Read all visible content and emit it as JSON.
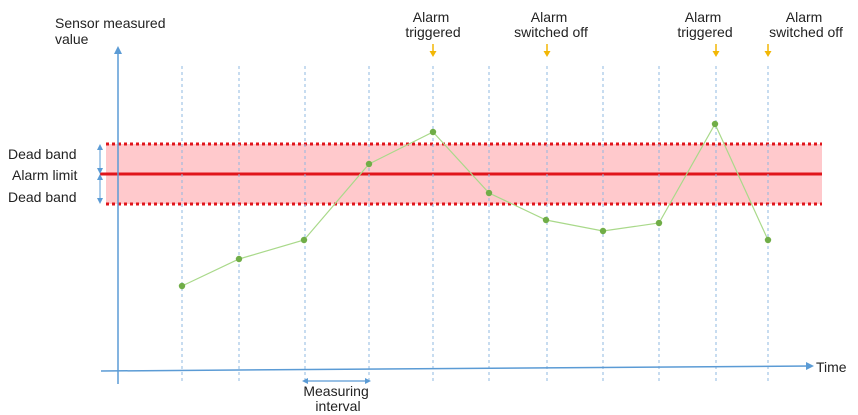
{
  "y_axis_label": [
    "Sensor measured",
    "value"
  ],
  "x_axis_label": "Time",
  "band_labels": {
    "upper": "Dead band",
    "limit": "Alarm limit",
    "lower": "Dead band"
  },
  "measuring_interval_label": [
    "Measuring",
    "interval"
  ],
  "events": [
    {
      "lines": [
        "Alarm",
        "triggered"
      ]
    },
    {
      "lines": [
        "Alarm",
        "switched off"
      ]
    },
    {
      "lines": [
        "Alarm",
        "triggered"
      ]
    },
    {
      "lines": [
        "Alarm",
        "switched off"
      ]
    }
  ],
  "colors": {
    "axis": "#5b9bd5",
    "grid": "#8fb8e0",
    "band_fill": "#ffc9cc",
    "band_edge": "#e0151b",
    "limit_line": "#e0151b",
    "series_line": "#a9d98a",
    "series_point": "#70ad47",
    "event_arrow": "#f2b705"
  }
}
